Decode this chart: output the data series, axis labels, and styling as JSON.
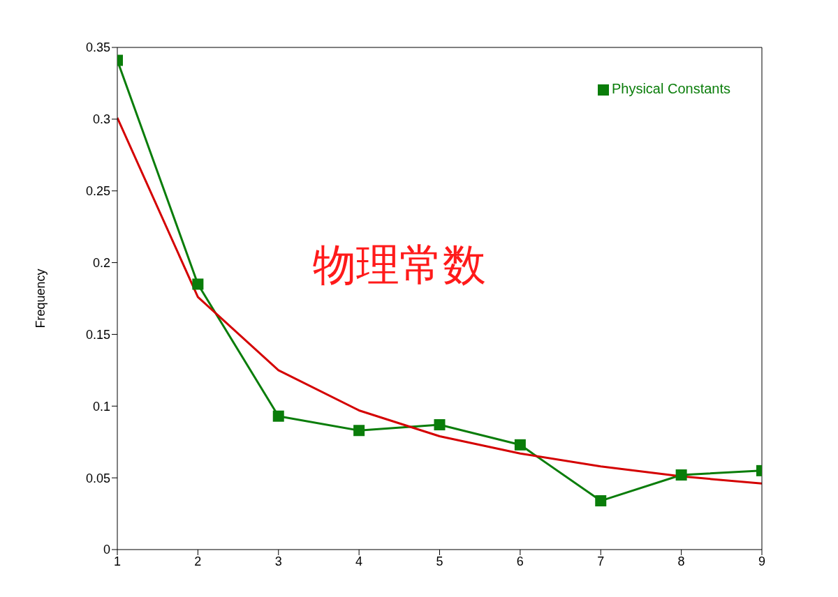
{
  "chart_data": {
    "type": "line",
    "ylabel": "Frequency",
    "annotations": [
      "物理常数"
    ],
    "x": [
      1,
      2,
      3,
      4,
      5,
      6,
      7,
      8,
      9
    ],
    "series": [
      {
        "color": "#d40000",
        "values": [
          0.301,
          0.176,
          0.125,
          0.097,
          0.079,
          0.067,
          0.058,
          0.051,
          0.046
        ],
        "marker": "none"
      },
      {
        "name": "Physical Constants",
        "color": "#0a7d0a",
        "values": [
          0.341,
          0.185,
          0.093,
          0.083,
          0.087,
          0.073,
          0.034,
          0.052,
          0.055
        ],
        "marker": "square"
      }
    ],
    "xlim": [
      1,
      9
    ],
    "xticks": [
      1,
      2,
      3,
      4,
      5,
      6,
      7,
      8,
      9
    ],
    "ylim": [
      0,
      0.35
    ],
    "yticks": [
      0,
      0.05,
      0.1,
      0.15,
      0.2,
      0.25,
      0.3,
      0.35
    ],
    "grid": false,
    "legend": "top right",
    "line_style": "solid"
  }
}
